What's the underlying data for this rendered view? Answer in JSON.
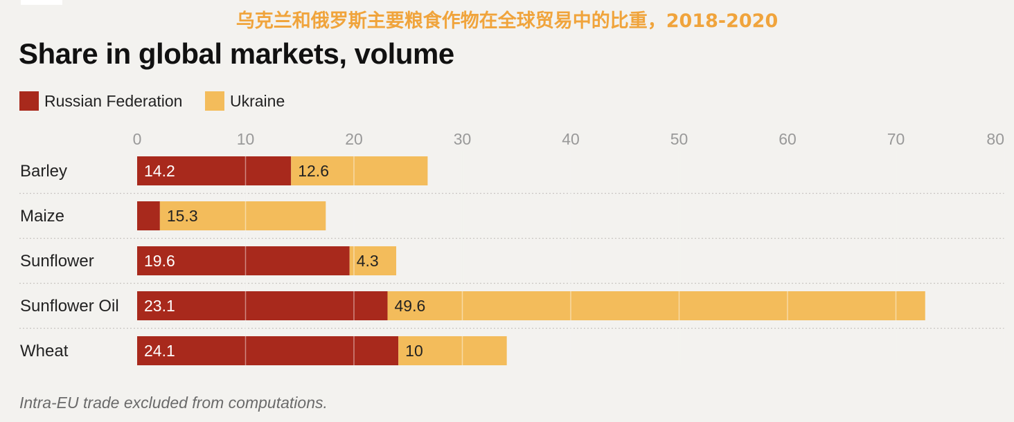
{
  "header": {
    "top_title": "乌克兰和俄罗斯主要粮食作物在全球贸易中的比重，2018-2020",
    "main_title": "Share in global markets, volume"
  },
  "footnote": "Intra-EU trade excluded from computations.",
  "colors": {
    "russia": "#a8291c",
    "ukraine": "#f3bc5b"
  },
  "chart_data": {
    "type": "bar",
    "orientation": "horizontal",
    "stacked": true,
    "title": "Share in global markets, volume",
    "categories": [
      "Barley",
      "Maize",
      "Sunflower",
      "Sunflower Oil",
      "Wheat"
    ],
    "series": [
      {
        "name": "Russian Federation",
        "values": [
          14.2,
          2.1,
          19.6,
          23.1,
          24.1
        ],
        "labels": [
          "14.2",
          "",
          "19.6",
          "23.1",
          "24.1"
        ]
      },
      {
        "name": "Ukraine",
        "values": [
          12.6,
          15.3,
          4.3,
          49.6,
          10
        ],
        "labels": [
          "12.6",
          "15.3",
          "4.3",
          "49.6",
          "10"
        ]
      }
    ],
    "xlim": [
      0,
      80
    ],
    "xticks": [
      "0",
      "10",
      "20",
      "30",
      "40",
      "50",
      "60",
      "70",
      "80"
    ],
    "tick_step": 10,
    "grid": true,
    "legend_position": "top-left"
  }
}
